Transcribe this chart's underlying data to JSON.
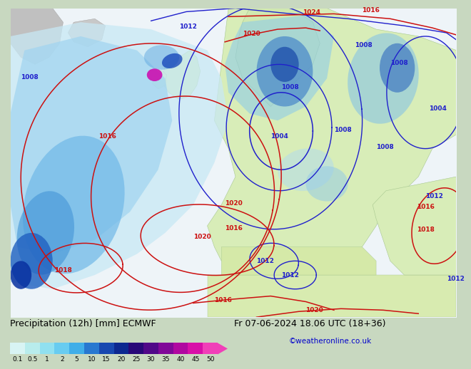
{
  "title_left": "Precipitation (12h) [mm] ECMWF",
  "title_right": "Fr 07-06-2024 18.06 UTC (18+36)",
  "credit": "©weatheronline.co.uk",
  "colorbar_labels": [
    "0.1",
    "0.5",
    "1",
    "2",
    "5",
    "10",
    "15",
    "20",
    "25",
    "30",
    "35",
    "40",
    "45",
    "50"
  ],
  "colorbar_colors": [
    "#d8f4f4",
    "#b8ecec",
    "#90e0f0",
    "#68ccf0",
    "#40aee8",
    "#2878d0",
    "#1848b0",
    "#0c2890",
    "#280878",
    "#500888",
    "#800898",
    "#b008a0",
    "#d810a8",
    "#f040b8"
  ],
  "ocean_color": "#e8f4f8",
  "land_europe_color": "#d8edc0",
  "land_africa_color": "#d0e8a8",
  "land_gray_color": "#c8c8c8",
  "precip_light1": "#c0e8f8",
  "precip_light2": "#90d0f0",
  "precip_med": "#5090d8",
  "precip_dark": "#1848b0",
  "precip_pink": "#e020c0",
  "bottom_bg": "#d8d8d8",
  "credit_color": "#0000cc",
  "title_fontsize": 9,
  "label_fontsize": 7.5,
  "fig_width": 6.34,
  "fig_height": 4.9
}
